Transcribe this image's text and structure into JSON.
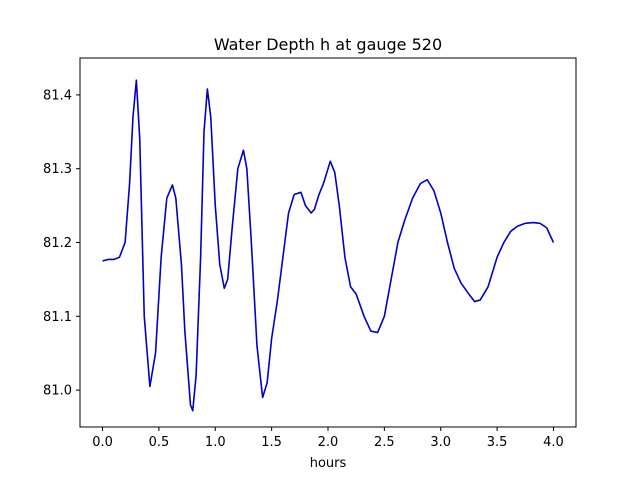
{
  "chart_data": {
    "type": "line",
    "title": "Water Depth h at gauge 520",
    "xlabel": "hours",
    "ylabel": "",
    "xlim": [
      -0.2,
      4.2
    ],
    "ylim": [
      80.95,
      81.45
    ],
    "xticks": [
      0.0,
      0.5,
      1.0,
      1.5,
      2.0,
      2.5,
      3.0,
      3.5,
      4.0
    ],
    "xtick_labels": [
      "0.0",
      "0.5",
      "1.0",
      "1.5",
      "2.0",
      "2.5",
      "3.0",
      "3.5",
      "4.0"
    ],
    "yticks": [
      81.0,
      81.1,
      81.2,
      81.3,
      81.4
    ],
    "ytick_labels": [
      "81.0",
      "81.1",
      "81.2",
      "81.3",
      "81.4"
    ],
    "grid": false,
    "series": [
      {
        "color": "#0000cc",
        "x": [
          0.0,
          0.05,
          0.1,
          0.15,
          0.2,
          0.24,
          0.27,
          0.3,
          0.33,
          0.37,
          0.42,
          0.47,
          0.52,
          0.57,
          0.62,
          0.65,
          0.7,
          0.73,
          0.78,
          0.8,
          0.83,
          0.87,
          0.9,
          0.93,
          0.96,
          1.0,
          1.04,
          1.08,
          1.11,
          1.15,
          1.2,
          1.25,
          1.28,
          1.32,
          1.37,
          1.42,
          1.46,
          1.5,
          1.55,
          1.6,
          1.65,
          1.7,
          1.76,
          1.8,
          1.85,
          1.88,
          1.92,
          1.96,
          2.02,
          2.06,
          2.1,
          2.15,
          2.2,
          2.25,
          2.32,
          2.38,
          2.44,
          2.5,
          2.56,
          2.62,
          2.68,
          2.75,
          2.82,
          2.88,
          2.94,
          3.0,
          3.06,
          3.12,
          3.18,
          3.25,
          3.3,
          3.35,
          3.42,
          3.5,
          3.56,
          3.62,
          3.68,
          3.75,
          3.82,
          3.88,
          3.94,
          4.0
        ],
        "y": [
          81.175,
          81.177,
          81.177,
          81.18,
          81.2,
          81.28,
          81.37,
          81.42,
          81.34,
          81.1,
          81.005,
          81.05,
          81.18,
          81.26,
          81.278,
          81.26,
          81.17,
          81.08,
          80.98,
          80.972,
          81.02,
          81.18,
          81.35,
          81.408,
          81.37,
          81.25,
          81.17,
          81.138,
          81.15,
          81.22,
          81.3,
          81.325,
          81.3,
          81.2,
          81.06,
          80.99,
          81.01,
          81.07,
          81.12,
          81.18,
          81.24,
          81.265,
          81.268,
          81.25,
          81.24,
          81.245,
          81.265,
          81.28,
          81.31,
          81.295,
          81.25,
          81.18,
          81.14,
          81.13,
          81.1,
          81.08,
          81.078,
          81.1,
          81.15,
          81.2,
          81.23,
          81.26,
          81.28,
          81.285,
          81.27,
          81.24,
          81.2,
          81.165,
          81.145,
          81.13,
          81.12,
          81.122,
          81.14,
          81.18,
          81.2,
          81.215,
          81.222,
          81.226,
          81.227,
          81.226,
          81.22,
          81.2
        ]
      }
    ]
  }
}
